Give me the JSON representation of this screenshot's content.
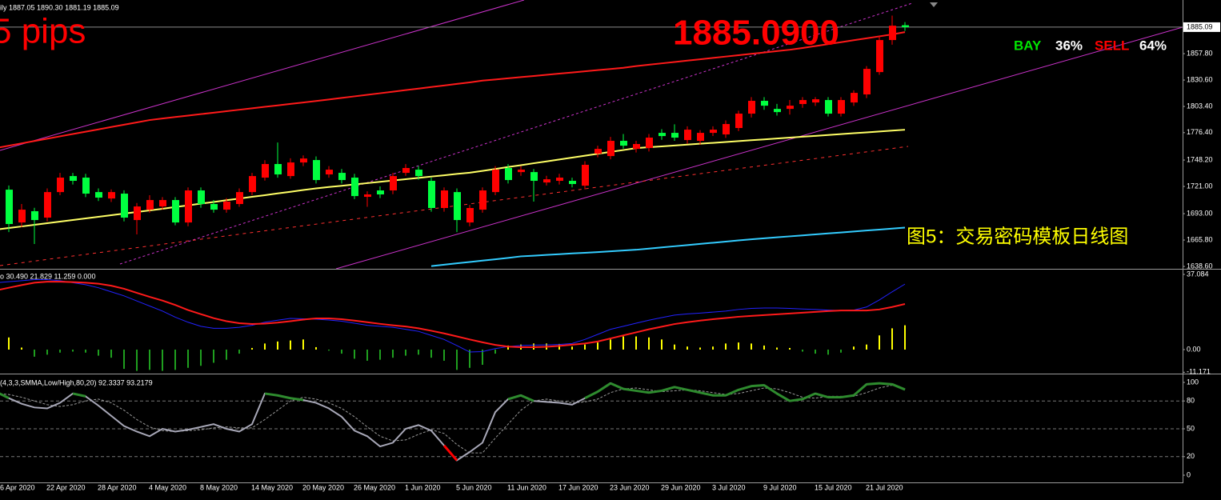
{
  "chart_data": [
    {
      "type": "candlestick",
      "title": "ily  1887.05 1890.30 1881.19 1885.09",
      "ylim": [
        1637.0,
        1911.4
      ],
      "yticks": [
        {
          "value": 1857.8,
          "label": "1857.80"
        },
        {
          "value": 1830.6,
          "label": "1830.60"
        },
        {
          "value": 1803.4,
          "label": "1803.40"
        },
        {
          "value": 1776.4,
          "label": "1776.40"
        },
        {
          "value": 1748.2,
          "label": "1748.20"
        },
        {
          "value": 1721.0,
          "label": "1721.00"
        },
        {
          "value": 1693.0,
          "label": "1693.00"
        },
        {
          "value": 1665.8,
          "label": "1665.80"
        },
        {
          "value": 1638.6,
          "label": "1638.60"
        }
      ],
      "up_color": "#ff0000",
      "down_color": "#00ff40",
      "open": [
        1712.0,
        1717.7,
        1683.9,
        1695.5,
        1688.9,
        1715.2,
        1731.7,
        1730.1,
        1715.2,
        1708.6,
        1713.6,
        1686.4,
        1697.1,
        1700.4,
        1707.0,
        1683.9,
        1716.9,
        1702.9,
        1697.1,
        1702.9,
        1715.2,
        1730.1,
        1744.1,
        1731.7,
        1745.7,
        1748.2,
        1733.4,
        1735.0,
        1730.1,
        1710.3,
        1716.9,
        1716.9,
        1735.0,
        1738.3,
        1726.8,
        1698.8,
        1715.2,
        1683.9,
        1697.1,
        1715.2,
        1740.0,
        1735.8,
        1735.8,
        1725.1,
        1726.8,
        1726.8,
        1721.8,
        1754.8,
        1752.3,
        1768.0,
        1759.7,
        1760.6,
        1776.2,
        1776.2,
        1768.8,
        1768.0,
        1776.2,
        1774.6,
        1781.2,
        1796.0,
        1809.2,
        1800.9,
        1800.9,
        1805.9,
        1807.5,
        1810.0,
        1796.0,
        1807.5,
        1815.8,
        1838.8,
        1871.8,
        1887.05
      ],
      "high": [
        1716,
        1722,
        1702.9,
        1699,
        1719,
        1735,
        1735,
        1734,
        1719,
        1718,
        1717,
        1704,
        1712,
        1710,
        1710,
        1720,
        1720,
        1707,
        1709,
        1719,
        1735,
        1748,
        1766.3,
        1750,
        1753,
        1752,
        1742,
        1739,
        1734,
        1716,
        1721,
        1735,
        1744,
        1742,
        1730,
        1720,
        1719,
        1702,
        1720,
        1742,
        1744,
        1742,
        1739,
        1732,
        1734,
        1730,
        1747,
        1763,
        1772,
        1775,
        1768,
        1775,
        1780,
        1785,
        1783,
        1779,
        1783,
        1789,
        1799,
        1813,
        1813,
        1806,
        1810,
        1813,
        1813,
        1813,
        1813,
        1820,
        1845,
        1876,
        1897,
        1890.3
      ],
      "low": [
        1685,
        1674.0,
        1679,
        1661.7,
        1685,
        1712,
        1723,
        1710,
        1706,
        1705,
        1685,
        1671.6,
        1694,
        1697,
        1681,
        1680,
        1699,
        1694,
        1694,
        1700,
        1712,
        1727,
        1730,
        1729,
        1742,
        1724,
        1730,
        1724,
        1708,
        1700,
        1709,
        1713,
        1732,
        1728,
        1695,
        1695,
        1674.0,
        1680,
        1694,
        1712,
        1724,
        1732,
        1705.4,
        1722,
        1723,
        1720,
        1718,
        1751,
        1749,
        1760,
        1756,
        1757,
        1769,
        1768,
        1765,
        1764,
        1773,
        1771,
        1778,
        1792,
        1800,
        1794,
        1795,
        1802,
        1804,
        1793,
        1793,
        1804,
        1812,
        1836,
        1867,
        1881.19
      ],
      "close": [
        1690,
        1682.3,
        1697.1,
        1686.4,
        1715.2,
        1730.1,
        1726.8,
        1713.6,
        1709.5,
        1715.2,
        1688.9,
        1700.4,
        1707.0,
        1707.0,
        1683.9,
        1716.9,
        1702.9,
        1697.1,
        1705.4,
        1715.2,
        1731.7,
        1744.1,
        1733.4,
        1745.7,
        1749.8,
        1727.6,
        1738.3,
        1727.6,
        1711.1,
        1712.8,
        1712.8,
        1731.7,
        1740.0,
        1731.7,
        1698.8,
        1716.9,
        1686.4,
        1698.8,
        1716.9,
        1738.3,
        1727.6,
        1738.3,
        1726.8,
        1728.4,
        1730.1,
        1723.5,
        1743.3,
        1759.7,
        1768.0,
        1763.0,
        1764.7,
        1771.3,
        1772.9,
        1771.3,
        1779.5,
        1776.2,
        1779.5,
        1785.3,
        1796.0,
        1809.2,
        1804.2,
        1797.6,
        1804.2,
        1810.0,
        1810.8,
        1796.0,
        1810.0,
        1817.4,
        1842.1,
        1871.8,
        1886.6,
        1885.09
      ],
      "overlays": [
        {
          "color": "#ff1a1a",
          "width": 2,
          "values": [
            1760.6,
            1763.0,
            1765.4,
            1767.8,
            1770.2,
            1772.6,
            1775.0,
            1777.4,
            1779.8,
            1782.2,
            1784.6,
            1787.0,
            1789.4,
            1791.0,
            1792.5,
            1794.0,
            1795.5,
            1797.0,
            1798.5,
            1800.0,
            1801.5,
            1803.0,
            1804.5,
            1806.0,
            1807.5,
            1809.0,
            1810.6,
            1812.2,
            1813.8,
            1815.4,
            1817.0,
            1818.6,
            1820.2,
            1821.8,
            1823.4,
            1825.0,
            1826.6,
            1828.2,
            1830.0,
            1831.2,
            1832.4,
            1833.6,
            1834.8,
            1836.0,
            1837.2,
            1838.4,
            1839.6,
            1840.8,
            1842.0,
            1843.2,
            1845.0,
            1846.4,
            1847.8,
            1849.2,
            1850.6,
            1852.0,
            1853.4,
            1854.8,
            1856.2,
            1857.6,
            1859.0,
            1860.4,
            1861.8,
            1863.6,
            1865.6,
            1867.6,
            1869.6,
            1871.6,
            1873.6,
            1875.6,
            1877.6,
            1880.0
          ]
        },
        {
          "color": "#ffff66",
          "width": 2,
          "values": [
            1676.5,
            1678.2,
            1679.8,
            1681.5,
            1683.1,
            1684.8,
            1686.4,
            1688.1,
            1689.7,
            1691.4,
            1693.0,
            1694.7,
            1696.3,
            1698.0,
            1699.8,
            1701.5,
            1703.3,
            1705.0,
            1706.8,
            1708.5,
            1710.3,
            1712.0,
            1713.8,
            1715.5,
            1717.3,
            1719.0,
            1720.4,
            1721.7,
            1723.1,
            1724.4,
            1725.8,
            1727.1,
            1728.5,
            1729.8,
            1731.2,
            1732.5,
            1733.9,
            1735.2,
            1737.0,
            1739.0,
            1741.0,
            1742.9,
            1744.9,
            1746.8,
            1748.8,
            1750.7,
            1752.7,
            1754.6,
            1756.6,
            1758.5,
            1760.5,
            1761.4,
            1762.3,
            1763.2,
            1764.1,
            1765.0,
            1765.9,
            1766.8,
            1767.7,
            1768.6,
            1769.5,
            1770.4,
            1771.3,
            1772.2,
            1773.1,
            1774.0,
            1774.9,
            1775.8,
            1776.7,
            1777.6,
            1778.5,
            1779.4
          ]
        },
        {
          "color": "#33ccff",
          "width": 2,
          "values": [
            null,
            null,
            null,
            null,
            null,
            null,
            null,
            null,
            null,
            null,
            null,
            null,
            null,
            null,
            null,
            null,
            null,
            null,
            null,
            null,
            null,
            null,
            null,
            null,
            null,
            null,
            null,
            null,
            null,
            null,
            null,
            null,
            null,
            null,
            1639.0,
            1640.4,
            1641.8,
            1643.2,
            1644.6,
            1646.0,
            1647.4,
            1649.0,
            1649.7,
            1650.5,
            1651.2,
            1652.0,
            1652.7,
            1653.4,
            1654.2,
            1655.0,
            1655.8,
            1657.0,
            1658.2,
            1659.4,
            1660.6,
            1661.8,
            1663.0,
            1664.2,
            1665.4,
            1666.6,
            1667.6,
            1668.6,
            1669.6,
            1670.6,
            1671.6,
            1672.6,
            1673.6,
            1674.6,
            1675.6,
            1676.6,
            1677.6,
            1678.6
          ]
        }
      ],
      "last_price": {
        "value": 1885.09,
        "label": "1885.09"
      },
      "annotations": [
        {
          "text": "5 pips",
          "color": "#ff0000"
        },
        {
          "text": "1885.0900",
          "color": "#ff0000"
        },
        {
          "text": "图5：交易密码模板日线图",
          "color": "#ffff00"
        }
      ],
      "sentiment": [
        {
          "label": "BAY",
          "value": 36,
          "value_label": "36%",
          "color": "#00e600"
        },
        {
          "label": "SELL",
          "value": 64,
          "value_label": "64%",
          "color": "#ff0000"
        }
      ]
    },
    {
      "type": "macd",
      "title": "o 30.490 21.829 11.259 0.000",
      "ylim": [
        -11.84,
        39.06
      ],
      "yticks": [
        37.084,
        {
          "value": 0,
          "label": "0.00"
        },
        -11.171
      ],
      "positive_color": "#ffff00",
      "negative_color": "#1f9f1f",
      "values": [
        7.0,
        6.0,
        1.0,
        -3.5,
        -2.5,
        -1.5,
        -1.0,
        -1.5,
        -3.0,
        -4.0,
        -9.5,
        -10.5,
        -10.0,
        -10.5,
        -10.0,
        -9.0,
        -8.0,
        -6.5,
        -5.0,
        -2.0,
        0.8,
        3.0,
        4.0,
        4.5,
        5.0,
        1.2,
        -0.5,
        -2.0,
        -4.5,
        -5.5,
        -5.0,
        -4.0,
        -3.0,
        -2.5,
        -4.0,
        -5.5,
        -10.0,
        -9.0,
        -7.5,
        -2.0,
        2.0,
        2.5,
        3.0,
        3.0,
        2.8,
        1.5,
        2.5,
        3.5,
        5.0,
        6.5,
        6.5,
        6.0,
        5.0,
        2.5,
        1.5,
        1.0,
        1.5,
        3.0,
        3.5,
        3.0,
        2.0,
        1.0,
        0.8,
        -1.0,
        -2.0,
        -2.5,
        -1.5,
        1.5,
        2.5,
        7.0,
        10.5,
        12.0
      ],
      "lines": [
        {
          "color": "#2222ff",
          "width": 1,
          "values": [
            33.0,
            33.5,
            34,
            34.5,
            34.5,
            34,
            33,
            32,
            30.5,
            28.5,
            26.5,
            24,
            21.5,
            19,
            16,
            13.5,
            11.5,
            10.5,
            10.5,
            11,
            12,
            13.5,
            14.5,
            15.4,
            15.2,
            15.0,
            14.6,
            14,
            13,
            12,
            11.5,
            11,
            10,
            9,
            7,
            5,
            2,
            -1.2,
            -1,
            0.5,
            1.5,
            2,
            2.2,
            2.3,
            2.5,
            3,
            5,
            7.5,
            10,
            11.5,
            13,
            14.5,
            15.8,
            17,
            17.6,
            18,
            18.5,
            19,
            19.8,
            20.3,
            20.5,
            20.5,
            20.3,
            20,
            19.8,
            19.5,
            19.3,
            19.5,
            21,
            24.5,
            28.5,
            32.3
          ]
        },
        {
          "color": "#ff1a1a",
          "width": 2,
          "values": [
            29.2,
            30.5,
            31.8,
            33.0,
            33.5,
            33.5,
            33.3,
            33,
            32.5,
            31.5,
            30,
            28,
            26,
            24.2,
            22,
            19.5,
            17.5,
            15.5,
            14,
            13,
            12.6,
            12.8,
            13.3,
            14,
            14.8,
            15.4,
            15.4,
            15.0,
            14.3,
            13.5,
            12.7,
            12,
            11.4,
            10.5,
            9.3,
            8,
            6.5,
            5,
            3.6,
            2.3,
            1.5,
            1.2,
            1.2,
            1.4,
            1.8,
            2.4,
            3,
            4,
            5.5,
            7,
            8.5,
            10,
            11.3,
            12.6,
            13.5,
            14.3,
            15,
            15.6,
            16.2,
            16.6,
            17,
            17.4,
            17.8,
            18.2,
            18.6,
            19,
            19.3,
            19.3,
            19.3,
            19.8,
            21,
            22.5
          ]
        }
      ]
    },
    {
      "type": "stochastic",
      "title": "(4,3,3,SMMA,Low/High,80,20) 92.3337 93.2179",
      "ylim": [
        -6.9,
        106.9
      ],
      "yticks": [
        100,
        80,
        50,
        20,
        0
      ],
      "level_lines": true,
      "overbought": 80,
      "oversold": 20,
      "line_color": "#a8a8b8",
      "overbought_color": "#2e8b2e",
      "oversold_color": "#ff0000",
      "signal_color": "#9a9a9a",
      "categories": [
        "6 Apr 2020",
        null,
        null,
        null,
        "22 Apr 2020",
        null,
        null,
        null,
        "28 Apr 2020",
        null,
        null,
        null,
        "4 May 2020",
        null,
        null,
        null,
        "8 May 2020",
        null,
        null,
        null,
        "14 May 2020",
        null,
        null,
        null,
        "20 May 2020",
        null,
        null,
        null,
        "26 May 2020",
        null,
        null,
        null,
        "1 Jun 2020",
        null,
        null,
        null,
        "5 Jun 2020",
        null,
        null,
        null,
        "11 Jun 2020",
        null,
        null,
        null,
        "17 Jun 2020",
        null,
        null,
        null,
        "23 Jun 2020",
        null,
        null,
        null,
        "29 Jun 2020",
        null,
        null,
        null,
        "3 Jul 2020",
        null,
        null,
        null,
        "9 Jul 2020",
        null,
        null,
        null,
        "15 Jul 2020",
        null,
        null,
        null,
        "21 Jul 2020",
        null,
        null,
        null
      ],
      "main": [
        90,
        83,
        77,
        73,
        72,
        78,
        88,
        85,
        75,
        64,
        53,
        47,
        42,
        50,
        47,
        49,
        52,
        55,
        50,
        47,
        55,
        88,
        86,
        83,
        81,
        78,
        72,
        63,
        48,
        42,
        31,
        35,
        50,
        54,
        48,
        32,
        16,
        25,
        35,
        68,
        82,
        86,
        80,
        79,
        78,
        76,
        83,
        90,
        99,
        93,
        91,
        89,
        91,
        95,
        92,
        89,
        86,
        86,
        92,
        96,
        97,
        88,
        80,
        82,
        88,
        84,
        84,
        86,
        98,
        99,
        98,
        92.3
      ],
      "signal": [
        88,
        87,
        84,
        80,
        76,
        74,
        76,
        80,
        82,
        78,
        70,
        60,
        52,
        48,
        47,
        48,
        49,
        51,
        52,
        51,
        51,
        60,
        70,
        80,
        84,
        82,
        78,
        72,
        63,
        52,
        42,
        37,
        38,
        44,
        49,
        45,
        33,
        24,
        24,
        40,
        55,
        70,
        80,
        82,
        80,
        78,
        79,
        82,
        89,
        93,
        94,
        92,
        90,
        91,
        92,
        91,
        89,
        87,
        88,
        91,
        94,
        93,
        89,
        84,
        83,
        85,
        85,
        85,
        89,
        94,
        97,
        93.2
      ]
    }
  ]
}
